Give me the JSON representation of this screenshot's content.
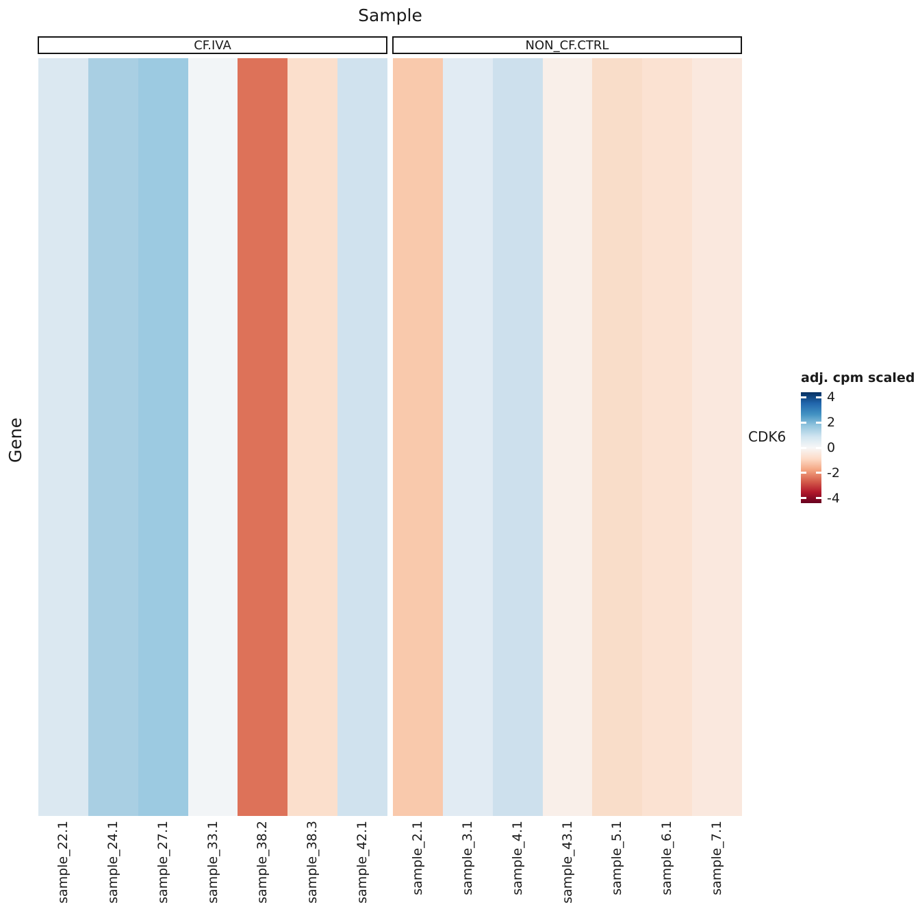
{
  "chart_data": {
    "type": "heatmap",
    "title": "Sample",
    "y_axis_title": "Gene",
    "rows": [
      "CDK6"
    ],
    "facets": [
      {
        "label": "CF.IVA",
        "columns": [
          "sample_22.1",
          "sample_24.1",
          "sample_27.1",
          "sample_33.1",
          "sample_38.2",
          "sample_38.3",
          "sample_42.1"
        ],
        "values": [
          1.1,
          2.3,
          2.5,
          0.1,
          -2.8,
          -0.8,
          1.3
        ],
        "cell_colors": [
          "#dbe8f1",
          "#a9cfe3",
          "#9ccae1",
          "#f2f5f7",
          "#dd7259",
          "#fbdfcc",
          "#d0e2ee"
        ]
      },
      {
        "label": "NON_CF.CTRL",
        "columns": [
          "sample_2.1",
          "sample_3.1",
          "sample_4.1",
          "sample_43.1",
          "sample_5.1",
          "sample_6.1",
          "sample_7.1"
        ],
        "values": [
          -1.6,
          0.9,
          1.4,
          -0.3,
          -0.9,
          -0.8,
          -0.6
        ],
        "cell_colors": [
          "#f9c9ac",
          "#e1ebf3",
          "#cde0ed",
          "#f9efe9",
          "#f9ddc9",
          "#fbe2d2",
          "#fae8de"
        ]
      }
    ],
    "legend": {
      "title": "adj. cpm scaled",
      "ticks": [
        4,
        2,
        0,
        -2,
        -4
      ],
      "domain": [
        -4.4,
        4.4
      ],
      "gradient_stops": [
        "#053061",
        "#2166ac",
        "#4393c3",
        "#92c5de",
        "#d1e5f0",
        "#f7f7f7",
        "#fddbc7",
        "#f4a582",
        "#d6604d",
        "#b2182b",
        "#67001f"
      ]
    },
    "layout": {
      "grid": false,
      "legend_position": "right",
      "x_tick_angle": 90
    }
  }
}
